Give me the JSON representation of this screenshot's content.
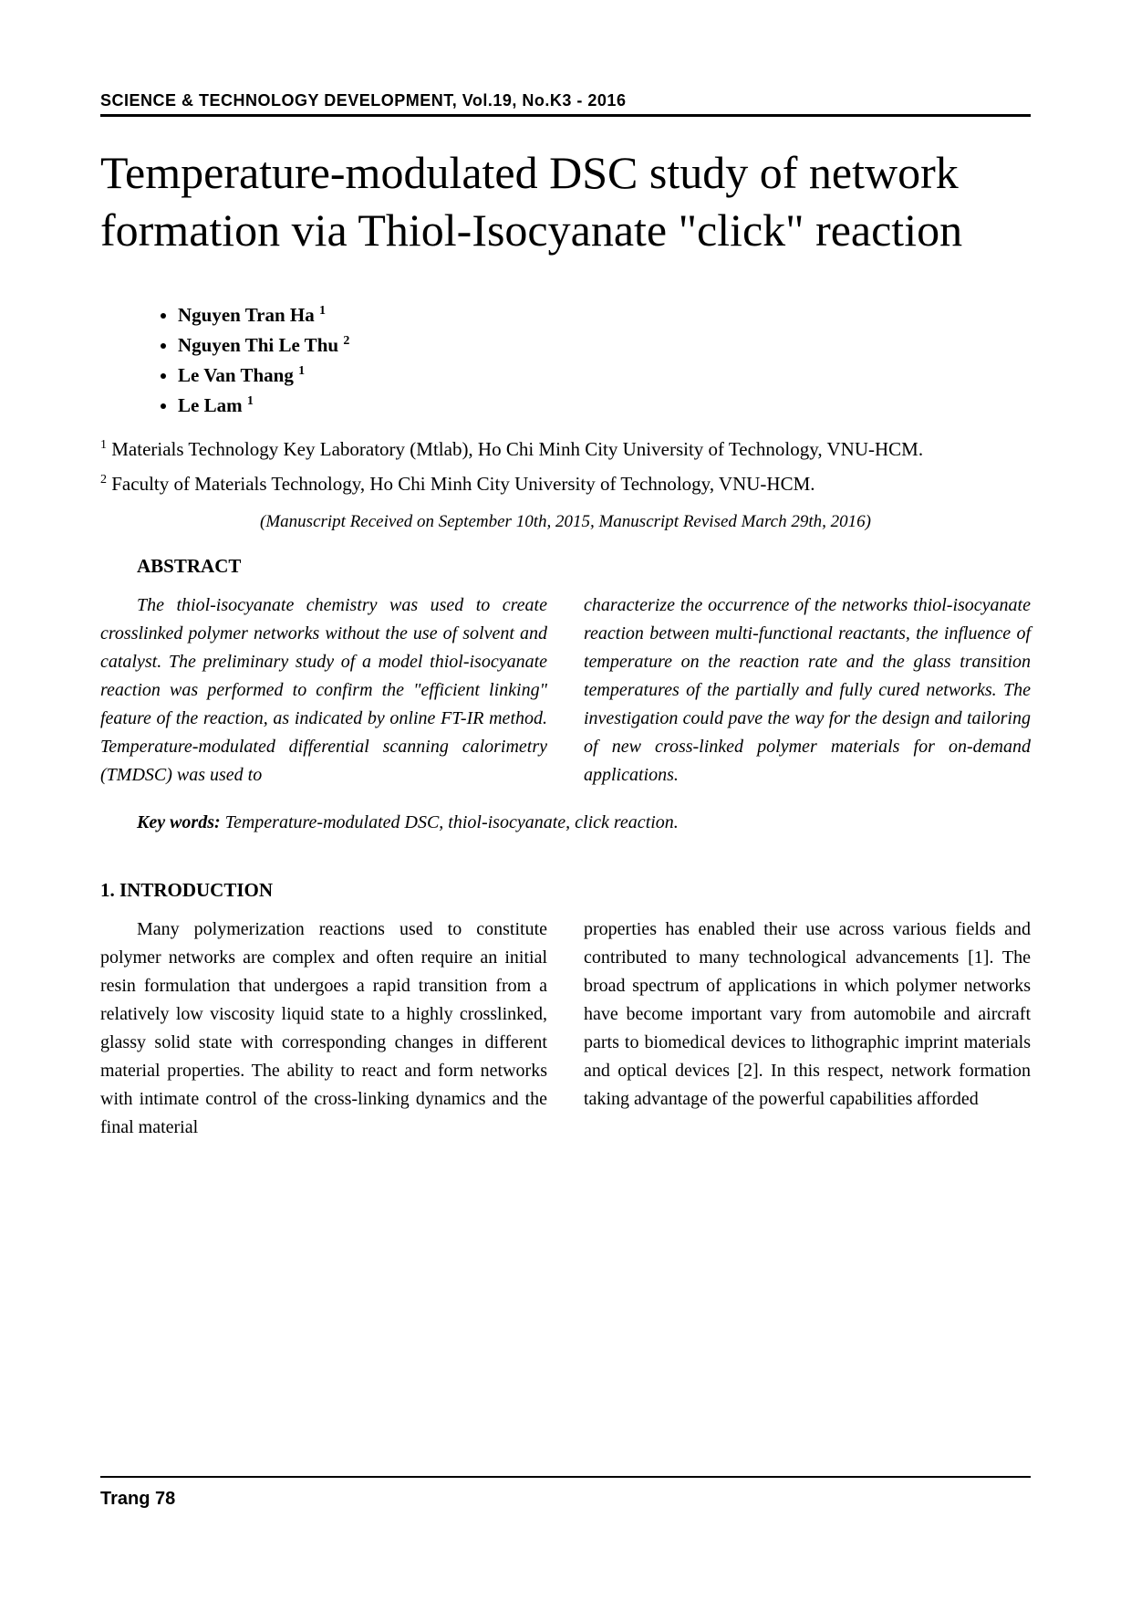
{
  "header": {
    "journal": "SCIENCE & TECHNOLOGY DEVELOPMENT, Vol.19, No.K3 - 2016"
  },
  "title": "Temperature-modulated DSC study of network formation via Thiol-Isocyanate \"click\" reaction",
  "authors": [
    {
      "name": "Nguyen Tran Ha",
      "ref": "1"
    },
    {
      "name": "Nguyen Thi Le Thu",
      "ref": "2"
    },
    {
      "name": "Le Van Thang",
      "ref": "1"
    },
    {
      "name": "Le Lam",
      "ref": "1"
    }
  ],
  "affiliations": [
    {
      "ref": "1",
      "text": "Materials Technology Key Laboratory (Mtlab), Ho Chi Minh City University of Technology, VNU-HCM."
    },
    {
      "ref": "2",
      "text": "Faculty of Materials Technology, Ho Chi Minh City University of Technology, VNU-HCM."
    }
  ],
  "manuscript_info": "(Manuscript Received on September 10th, 2015, Manuscript Revised March 29th, 2016)",
  "abstract": {
    "heading": "ABSTRACT",
    "left": "The thiol-isocyanate chemistry was used to create crosslinked polymer networks without the use of solvent and catalyst. The preliminary study of a model thiol-isocyanate reaction was performed to confirm the \"efficient linking\" feature of the reaction, as indicated by online FT-IR method. Temperature-modulated differential scanning calorimetry (TMDSC) was used to",
    "right": "characterize the occurrence of the networks thiol-isocyanate reaction between multi-functional reactants, the influence of temperature on the reaction rate and the glass transition temperatures of the partially and fully cured networks. The investigation could pave the way for the design and tailoring of new cross-linked polymer materials for on-demand applications."
  },
  "keywords": {
    "label": "Key words:",
    "text": " Temperature-modulated DSC, thiol-isocyanate, click reaction."
  },
  "introduction": {
    "heading": "1. INTRODUCTION",
    "left": "Many polymerization reactions used to constitute polymer networks are complex and often require an initial resin formulation that undergoes a rapid transition from a relatively low viscosity liquid state to a highly crosslinked, glassy solid state with corresponding changes in different material properties. The ability to react and form networks with intimate control of the cross-linking dynamics and the final material",
    "right": "properties has enabled their use across various fields and contributed to many technological advancements [1]. The broad spectrum of applications in which polymer networks have become important vary from automobile and aircraft parts to biomedical devices to lithographic imprint materials and optical devices [2]. In this respect, network formation taking advantage of the powerful capabilities afforded"
  },
  "footer": {
    "page": "Trang 78"
  }
}
